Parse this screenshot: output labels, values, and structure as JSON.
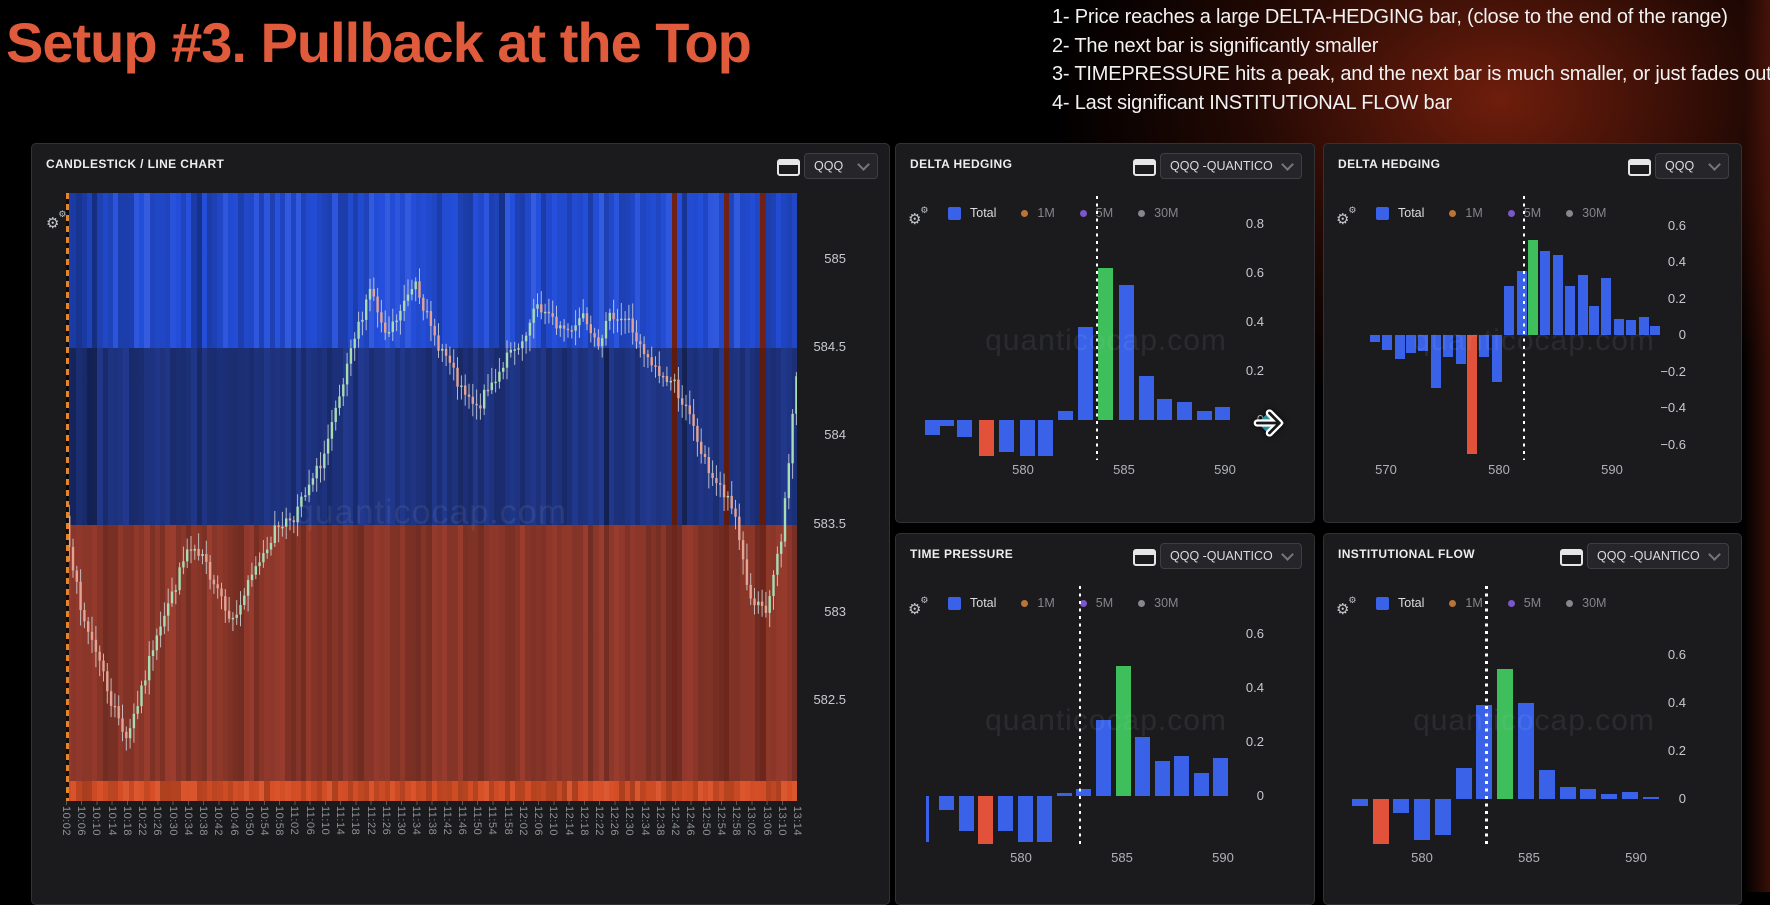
{
  "page": {
    "title": "Setup #3. Pullback at the Top",
    "notes": [
      "1- Price reaches a large DELTA-HEDGING bar, (close to the end of the range)",
      "2- The next bar is significantly smaller",
      "3- TIMEPRESSURE hits a peak, and the next bar is much smaller, or just fades out",
      "4- Last significant INSTITUTIONAL FLOW bar"
    ]
  },
  "watermark": "quanticocap.com",
  "colors": {
    "title": "#E05A3C",
    "bar_blue": "#3A62E8",
    "bar_red": "#E2523A",
    "bar_green": "#3FBE5C",
    "candle_up": "#A8DCB2",
    "candle_down": "#E5A493"
  },
  "legend": {
    "items": [
      {
        "label": "Total",
        "shape": "square",
        "color": "#3A62E8"
      },
      {
        "label": "1M",
        "shape": "dot",
        "color": "#BD7334"
      },
      {
        "label": "5M",
        "shape": "dot",
        "color": "#7B57C8"
      },
      {
        "label": "30M",
        "shape": "dot",
        "color": "#87878C"
      }
    ]
  },
  "chart_data": [
    {
      "id": "price",
      "type": "candlestick-heatmap",
      "panel_title": "CANDLESTICK / LINE CHART",
      "symbol": "QQQ",
      "y_ticks": [
        585,
        584.5,
        584,
        583.5,
        583,
        582.5
      ],
      "ylim": [
        581.93,
        585.38
      ],
      "zones": {
        "bright_blue_above": 584.5,
        "mid_blue_between": [
          583.5,
          584.5
        ],
        "red_below": 583.5,
        "orange_band_bottom": true
      },
      "left_marker": "orange-dashed-vertical-line",
      "x_labels": [
        "10:02",
        "10:06",
        "10:10",
        "10:14",
        "10:18",
        "10:22",
        "10:26",
        "10:30",
        "10:34",
        "10:38",
        "10:42",
        "10:46",
        "10:50",
        "10:54",
        "10:58",
        "11:02",
        "11:06",
        "11:10",
        "11:14",
        "11:18",
        "11:22",
        "11:26",
        "11:30",
        "11:34",
        "11:38",
        "11:42",
        "11:46",
        "11:50",
        "11:54",
        "11:58",
        "12:02",
        "12:06",
        "12:10",
        "12:14",
        "12:18",
        "12:22",
        "12:26",
        "12:30",
        "12:34",
        "12:38",
        "12:42",
        "12:46",
        "12:50",
        "12:54",
        "12:58",
        "13:02",
        "13:06",
        "13:10",
        "13:14"
      ],
      "interval_minutes": 4,
      "close_series": [
        583.55,
        583.0,
        582.8,
        582.5,
        582.3,
        582.55,
        582.9,
        583.1,
        583.35,
        583.3,
        583.15,
        582.95,
        583.15,
        583.35,
        583.5,
        583.55,
        583.7,
        583.9,
        584.2,
        584.55,
        584.85,
        584.55,
        584.7,
        584.9,
        584.6,
        584.45,
        584.25,
        584.15,
        584.3,
        584.45,
        584.5,
        584.75,
        584.65,
        584.6,
        584.7,
        584.55,
        584.7,
        584.65,
        584.45,
        584.35,
        584.3,
        584.1,
        583.85,
        583.7,
        583.55,
        583.05,
        583.0,
        583.4,
        584.35
      ]
    },
    {
      "id": "dh1",
      "type": "bar",
      "panel_title": "DELTA HEDGING",
      "symbol": "QQQ -QUANTICO",
      "y_ticks": [
        0.8,
        0.6,
        0.4,
        0.2,
        0
      ],
      "x_ticks": [
        580,
        585,
        590
      ],
      "dotted_line_x": 583.6,
      "bars": [
        {
          "x": 575.5,
          "v": -0.06
        },
        {
          "x": 576.2,
          "v": -0.025
        },
        {
          "x": 577.1,
          "v": -0.07
        },
        {
          "x": 578.2,
          "v": -0.3,
          "c": "red"
        },
        {
          "x": 579.2,
          "v": -0.13
        },
        {
          "x": 580.2,
          "v": -0.27
        },
        {
          "x": 581.1,
          "v": -0.27
        },
        {
          "x": 582.1,
          "v": 0.035
        },
        {
          "x": 583.1,
          "v": 0.38
        },
        {
          "x": 584.1,
          "v": 0.62,
          "c": "green"
        },
        {
          "x": 585.1,
          "v": 0.55
        },
        {
          "x": 586.1,
          "v": 0.18
        },
        {
          "x": 587.0,
          "v": 0.085
        },
        {
          "x": 588.0,
          "v": 0.075
        },
        {
          "x": 589.0,
          "v": 0.035
        },
        {
          "x": 589.9,
          "v": 0.055
        }
      ]
    },
    {
      "id": "dh2",
      "type": "bar",
      "panel_title": "DELTA HEDGING",
      "symbol": "QQQ",
      "y_ticks": [
        0.6,
        0.4,
        0.2,
        0,
        -0.2,
        -0.4,
        -0.6
      ],
      "x_ticks": [
        570,
        580,
        590
      ],
      "dotted_line_x": 582.1,
      "bars": [
        {
          "x": 569.0,
          "v": -0.04
        },
        {
          "x": 570.1,
          "v": -0.08
        },
        {
          "x": 571.2,
          "v": -0.13
        },
        {
          "x": 572.2,
          "v": -0.1
        },
        {
          "x": 573.3,
          "v": -0.09
        },
        {
          "x": 574.4,
          "v": -0.29
        },
        {
          "x": 575.5,
          "v": -0.12
        },
        {
          "x": 576.6,
          "v": -0.16
        },
        {
          "x": 577.6,
          "v": -0.65,
          "c": "red"
        },
        {
          "x": 578.7,
          "v": -0.12
        },
        {
          "x": 579.8,
          "v": -0.26
        },
        {
          "x": 580.9,
          "v": 0.27
        },
        {
          "x": 582.0,
          "v": 0.35
        },
        {
          "x": 583.0,
          "v": 0.52,
          "c": "green"
        },
        {
          "x": 584.1,
          "v": 0.46
        },
        {
          "x": 585.2,
          "v": 0.44
        },
        {
          "x": 586.3,
          "v": 0.27
        },
        {
          "x": 587.4,
          "v": 0.33
        },
        {
          "x": 588.4,
          "v": 0.16
        },
        {
          "x": 589.5,
          "v": 0.31
        },
        {
          "x": 590.6,
          "v": 0.09
        },
        {
          "x": 591.7,
          "v": 0.08
        },
        {
          "x": 592.8,
          "v": 0.1
        },
        {
          "x": 593.8,
          "v": 0.05
        }
      ]
    },
    {
      "id": "tp",
      "type": "bar",
      "panel_title": "TIME PRESSURE",
      "symbol": "QQQ -QUANTICO",
      "y_ticks": [
        0.6,
        0.4,
        0.2,
        0
      ],
      "x_ticks": [
        580,
        585,
        590
      ],
      "dotted_line_x": 582.85,
      "bars": [
        {
          "x": 575.35,
          "v": -0.17,
          "thin": true
        },
        {
          "x": 576.32,
          "v": -0.05
        },
        {
          "x": 577.29,
          "v": -0.13
        },
        {
          "x": 578.26,
          "v": -0.185,
          "c": "red"
        },
        {
          "x": 579.23,
          "v": -0.13
        },
        {
          "x": 580.2,
          "v": -0.17
        },
        {
          "x": 581.17,
          "v": -0.17
        },
        {
          "x": 582.14,
          "v": 0.012
        },
        {
          "x": 583.11,
          "v": 0.025
        },
        {
          "x": 584.08,
          "v": 0.28
        },
        {
          "x": 585.05,
          "v": 0.48,
          "c": "green"
        },
        {
          "x": 586.02,
          "v": 0.22
        },
        {
          "x": 586.99,
          "v": 0.13
        },
        {
          "x": 587.96,
          "v": 0.15
        },
        {
          "x": 588.93,
          "v": 0.085
        },
        {
          "x": 589.9,
          "v": 0.14
        }
      ]
    },
    {
      "id": "if",
      "type": "bar",
      "panel_title": "INSTITUTIONAL FLOW",
      "symbol": "QQQ -QUANTICO",
      "y_ticks": [
        0.6,
        0.4,
        0.2,
        0
      ],
      "x_ticks": [
        580,
        585,
        590
      ],
      "dotted_line_x": 582.95,
      "bars": [
        {
          "x": 577.1,
          "v": -0.03
        },
        {
          "x": 578.07,
          "v": -0.21,
          "c": "red"
        },
        {
          "x": 579.04,
          "v": -0.06
        },
        {
          "x": 580.01,
          "v": -0.17
        },
        {
          "x": 580.98,
          "v": -0.15
        },
        {
          "x": 581.95,
          "v": 0.13
        },
        {
          "x": 582.92,
          "v": 0.39
        },
        {
          "x": 583.89,
          "v": 0.54,
          "c": "green"
        },
        {
          "x": 584.86,
          "v": 0.4
        },
        {
          "x": 585.83,
          "v": 0.12
        },
        {
          "x": 586.8,
          "v": 0.05
        },
        {
          "x": 587.77,
          "v": 0.04
        },
        {
          "x": 588.74,
          "v": 0.02
        },
        {
          "x": 589.71,
          "v": 0.03
        },
        {
          "x": 590.68,
          "v": 0.01
        }
      ]
    }
  ]
}
